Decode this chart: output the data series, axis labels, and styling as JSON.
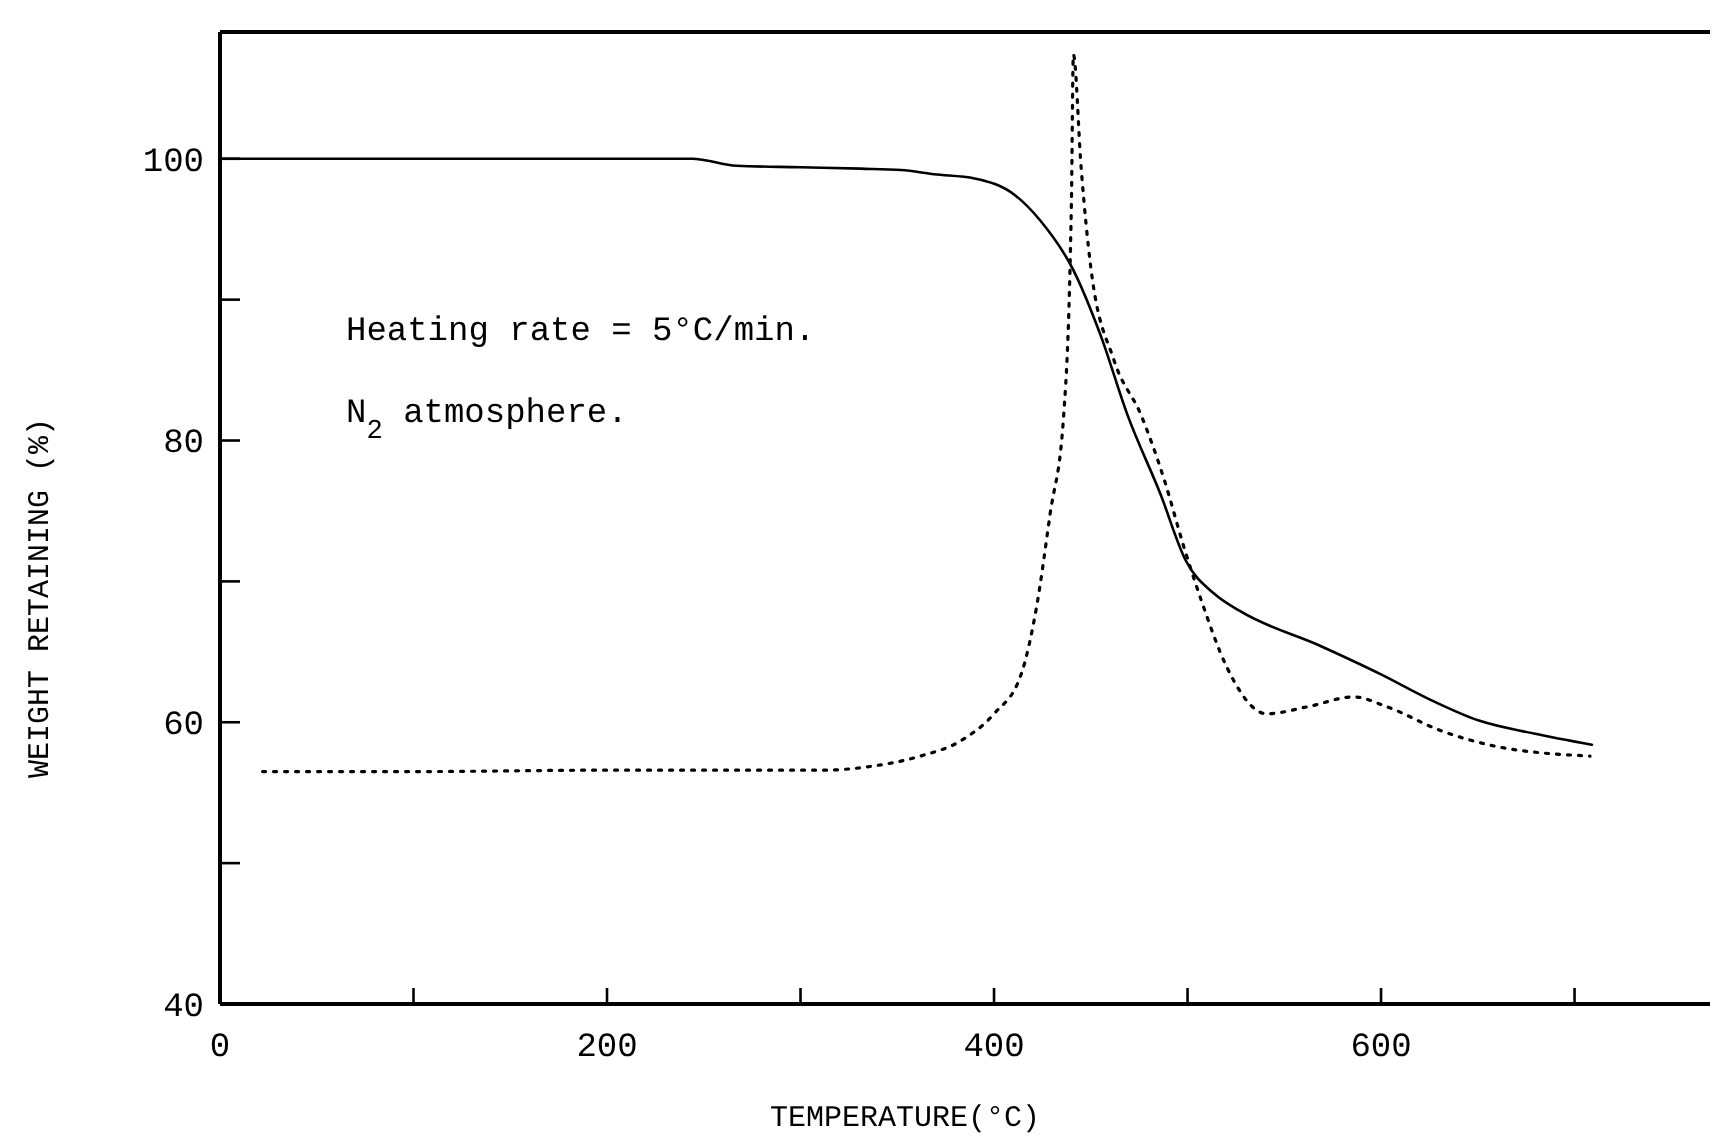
{
  "chart_data": {
    "type": "line",
    "xlabel": "TEMPERATURE(°C)",
    "ylabel": "WEIGHT RETAINING (%)",
    "xlim": [
      0,
      770
    ],
    "ylim": [
      40,
      109
    ],
    "xticks": [
      0,
      {
        "value": 100,
        "label": null
      },
      200,
      {
        "value": 300,
        "label": null
      },
      400,
      {
        "value": 500,
        "label": null
      },
      600,
      {
        "value": 700,
        "label": null
      }
    ],
    "yticks": [
      40,
      {
        "value": 50,
        "label": null
      },
      60,
      {
        "value": 70,
        "label": null
      },
      80,
      {
        "value": 90,
        "label": null
      },
      100
    ],
    "marker": "none",
    "annotations": [
      "Heating rate = 5°C/min.",
      "N$_{2}$ atmosphere."
    ],
    "series": [
      {
        "color": "#000000",
        "line_style": "solid",
        "x": [
          0,
          100,
          244,
          267,
          300,
          331,
          352,
          369,
          390,
          411,
          424,
          441,
          455,
          469,
          486,
          499,
          514,
          527,
          569,
          600,
          624,
          651,
          679,
          709
        ],
        "values": [
          100,
          100,
          100,
          99.5,
          99.4,
          99.3,
          99.2,
          98.9,
          98.6,
          97.4,
          95.6,
          92.1,
          87.5,
          81.8,
          76.2,
          71.5,
          69.1,
          67.9,
          65.4,
          63.4,
          61.7,
          60.1,
          59.2,
          58.4
        ]
      },
      {
        "color": "#000000",
        "line_style": "dotted",
        "x": [
          22,
          100,
          200,
          312,
          338,
          362,
          383,
          400,
          414,
          422,
          429,
          436,
          440,
          441,
          445,
          450,
          462,
          476,
          488,
          498,
          507,
          520,
          541,
          562,
          586,
          603,
          631,
          659,
          708
        ],
        "values": [
          56.5,
          56.5,
          56.6,
          56.6,
          56.9,
          57.6,
          58.7,
          60.6,
          63.4,
          68.2,
          74.8,
          81.8,
          97,
          107.4,
          99.4,
          92.3,
          85.7,
          81.8,
          77.2,
          72.5,
          68.7,
          64,
          60.6,
          61.1,
          61.8,
          61.1,
          59.4,
          58.3,
          57.6
        ]
      }
    ]
  }
}
